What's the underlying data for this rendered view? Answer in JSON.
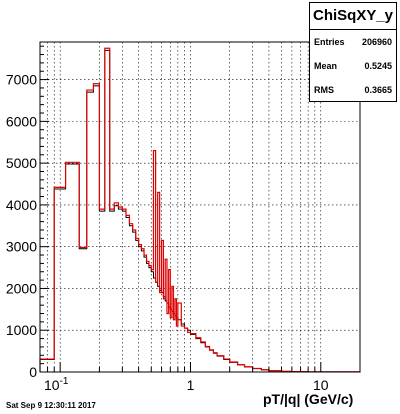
{
  "stats": {
    "title": "ChiSqXY_y",
    "rows": [
      {
        "label": "Entries",
        "value": "206960"
      },
      {
        "label": "Mean",
        "value": "0.5245"
      },
      {
        "label": "RMS",
        "value": "0.3665"
      }
    ]
  },
  "footer": "Sat Sep  9 12:30:11 2017",
  "chart_data": {
    "type": "histogram",
    "title": "ChiSqXY_y",
    "xlabel": "pT/|q| (GeV/c)",
    "ylabel": "",
    "x_scale": "log",
    "xlim": [
      0.07,
      20
    ],
    "ylim": [
      0,
      7900
    ],
    "grid": true,
    "x_tick_labels": [
      "10^-1",
      "1",
      "10"
    ],
    "y_ticks": [
      0,
      1000,
      2000,
      3000,
      4000,
      5000,
      6000,
      7000
    ],
    "colors": {
      "black_series": "#000000",
      "red_series": "#e00000"
    },
    "series": [
      {
        "color": "black",
        "bins": [
          [
            0.07,
            0.09,
            300
          ],
          [
            0.09,
            0.11,
            4380
          ],
          [
            0.11,
            0.14,
            4980
          ],
          [
            0.14,
            0.16,
            2950
          ],
          [
            0.16,
            0.18,
            6700
          ],
          [
            0.18,
            0.2,
            6850
          ],
          [
            0.2,
            0.22,
            3850
          ],
          [
            0.22,
            0.24,
            7700
          ],
          [
            0.24,
            0.26,
            3850
          ],
          [
            0.26,
            0.28,
            3980
          ],
          [
            0.28,
            0.3,
            3900
          ],
          [
            0.3,
            0.32,
            3850
          ],
          [
            0.32,
            0.34,
            3700
          ],
          [
            0.34,
            0.36,
            3500
          ],
          [
            0.36,
            0.38,
            3350
          ],
          [
            0.38,
            0.4,
            3150
          ],
          [
            0.4,
            0.42,
            3000
          ],
          [
            0.42,
            0.44,
            2900
          ],
          [
            0.44,
            0.46,
            2750
          ],
          [
            0.46,
            0.48,
            2600
          ],
          [
            0.48,
            0.5,
            2500
          ],
          [
            0.5,
            0.52,
            2400
          ],
          [
            0.52,
            0.54,
            2250
          ],
          [
            0.54,
            0.56,
            2150
          ],
          [
            0.56,
            0.58,
            2050
          ],
          [
            0.58,
            0.6,
            1950
          ],
          [
            0.6,
            0.62,
            1900
          ],
          [
            0.62,
            0.64,
            1800
          ],
          [
            0.64,
            0.66,
            1700
          ],
          [
            0.66,
            0.68,
            1650
          ],
          [
            0.68,
            0.7,
            1550
          ],
          [
            0.7,
            0.72,
            1500
          ],
          [
            0.72,
            0.74,
            1450
          ],
          [
            0.74,
            0.76,
            1400
          ],
          [
            0.76,
            0.78,
            1350
          ],
          [
            0.78,
            0.8,
            1300
          ],
          [
            0.8,
            0.85,
            1250
          ],
          [
            0.85,
            0.9,
            1150
          ],
          [
            0.9,
            0.95,
            1050
          ],
          [
            0.95,
            1.0,
            1000
          ],
          [
            1.0,
            1.1,
            900
          ],
          [
            1.1,
            1.2,
            800
          ],
          [
            1.2,
            1.3,
            700
          ],
          [
            1.3,
            1.4,
            600
          ],
          [
            1.4,
            1.5,
            520
          ],
          [
            1.5,
            1.6,
            450
          ],
          [
            1.6,
            1.8,
            380
          ],
          [
            1.8,
            2.0,
            300
          ],
          [
            2.0,
            2.3,
            230
          ],
          [
            2.3,
            2.6,
            170
          ],
          [
            2.6,
            3.0,
            120
          ],
          [
            3.0,
            3.5,
            80
          ],
          [
            3.5,
            4.0,
            50
          ],
          [
            4.0,
            5.0,
            30
          ],
          [
            5.0,
            6.0,
            15
          ],
          [
            6.0,
            8.0,
            8
          ],
          [
            8.0,
            20,
            2
          ]
        ]
      },
      {
        "color": "red",
        "bins": [
          [
            0.07,
            0.09,
            310
          ],
          [
            0.09,
            0.11,
            4420
          ],
          [
            0.11,
            0.14,
            5020
          ],
          [
            0.14,
            0.16,
            2980
          ],
          [
            0.16,
            0.18,
            6750
          ],
          [
            0.18,
            0.2,
            6900
          ],
          [
            0.2,
            0.22,
            3900
          ],
          [
            0.22,
            0.24,
            7750
          ],
          [
            0.24,
            0.26,
            3900
          ],
          [
            0.26,
            0.28,
            4050
          ],
          [
            0.28,
            0.3,
            3950
          ],
          [
            0.3,
            0.32,
            3900
          ],
          [
            0.32,
            0.34,
            3750
          ],
          [
            0.34,
            0.36,
            3550
          ],
          [
            0.36,
            0.38,
            3400
          ],
          [
            0.38,
            0.4,
            3200
          ],
          [
            0.4,
            0.42,
            3050
          ],
          [
            0.42,
            0.44,
            2950
          ],
          [
            0.44,
            0.46,
            2800
          ],
          [
            0.46,
            0.48,
            2650
          ],
          [
            0.48,
            0.5,
            2550
          ],
          [
            0.5,
            0.52,
            2450
          ],
          [
            0.52,
            0.54,
            5300
          ],
          [
            0.54,
            0.56,
            2150
          ],
          [
            0.56,
            0.58,
            4300
          ],
          [
            0.58,
            0.6,
            1900
          ],
          [
            0.6,
            0.62,
            3150
          ],
          [
            0.62,
            0.64,
            1750
          ],
          [
            0.64,
            0.66,
            2700
          ],
          [
            0.66,
            0.68,
            1400
          ],
          [
            0.68,
            0.7,
            2450
          ],
          [
            0.7,
            0.72,
            1300
          ],
          [
            0.72,
            0.74,
            2050
          ],
          [
            0.74,
            0.76,
            1250
          ],
          [
            0.76,
            0.78,
            1750
          ],
          [
            0.78,
            0.8,
            1100
          ],
          [
            0.8,
            0.85,
            1650
          ],
          [
            0.85,
            0.9,
            1100
          ],
          [
            0.9,
            0.95,
            1050
          ],
          [
            0.95,
            1.0,
            950
          ],
          [
            1.0,
            1.1,
            920
          ],
          [
            1.1,
            1.2,
            820
          ],
          [
            1.2,
            1.3,
            720
          ],
          [
            1.3,
            1.4,
            610
          ],
          [
            1.4,
            1.5,
            530
          ],
          [
            1.5,
            1.6,
            460
          ],
          [
            1.6,
            1.8,
            390
          ],
          [
            1.8,
            2.0,
            310
          ],
          [
            2.0,
            2.3,
            240
          ],
          [
            2.3,
            2.6,
            175
          ],
          [
            2.6,
            3.0,
            125
          ],
          [
            3.0,
            3.5,
            85
          ],
          [
            3.5,
            4.0,
            55
          ],
          [
            4.0,
            5.0,
            32
          ],
          [
            5.0,
            6.0,
            16
          ],
          [
            6.0,
            8.0,
            9
          ],
          [
            8.0,
            20,
            3
          ]
        ]
      }
    ]
  }
}
